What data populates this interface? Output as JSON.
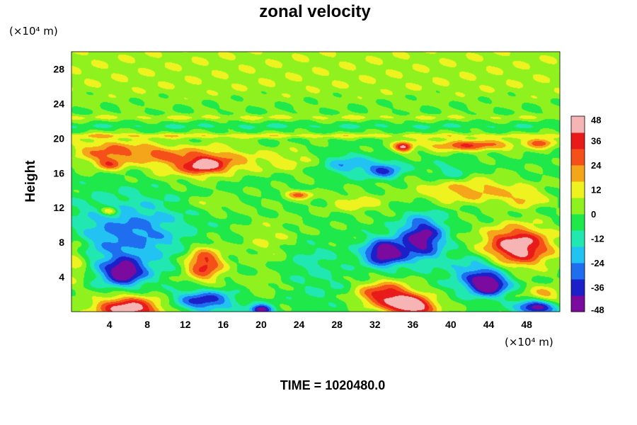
{
  "chart_data": {
    "type": "heatmap",
    "title": "zonal velocity",
    "ylabel": "Height",
    "y_unit": "(×10⁴ m)",
    "x_unit": "(×10⁴ m)",
    "footer": "TIME = 1020480.0",
    "xlim": [
      0,
      51.5
    ],
    "ylim": [
      0,
      30
    ],
    "x_ticks": [
      4,
      8,
      12,
      16,
      20,
      24,
      28,
      32,
      36,
      40,
      44,
      48
    ],
    "y_ticks": [
      4,
      8,
      12,
      16,
      20,
      24,
      28
    ],
    "colorbar": {
      "min": -48,
      "max": 48,
      "ticks": [
        48,
        36,
        24,
        12,
        0,
        -12,
        -24,
        -36,
        -48
      ],
      "colors": [
        "#7b0a9e",
        "#1b20c8",
        "#1f6ef0",
        "#22c3f2",
        "#20e8b0",
        "#1fe84a",
        "#8ff21f",
        "#eef21f",
        "#f5a51a",
        "#f5501a",
        "#e81a1a",
        "#f7b4b4"
      ]
    },
    "background_value": -2,
    "features": [
      {
        "x": 18,
        "y": 22.4,
        "sx": 60,
        "sy": 0.35,
        "v": 10
      },
      {
        "x": 18,
        "y": 21.4,
        "sx": 60,
        "sy": 0.3,
        "v": -6
      },
      {
        "x": 18,
        "y": 20.3,
        "sx": 60,
        "sy": 0.3,
        "v": 14
      },
      {
        "x": 4,
        "y": 18.5,
        "sx": 4,
        "sy": 1.5,
        "v": 28
      },
      {
        "x": 4,
        "y": 17,
        "sx": 1.5,
        "sy": 0.7,
        "v": 22
      },
      {
        "x": 14,
        "y": 17.2,
        "sx": 5,
        "sy": 1.8,
        "v": 34
      },
      {
        "x": 14,
        "y": 16.8,
        "sx": 1.8,
        "sy": 0.9,
        "v": 20
      },
      {
        "x": 9,
        "y": 18.3,
        "sx": 2.5,
        "sy": 1,
        "v": 14
      },
      {
        "x": 23,
        "y": 17.5,
        "sx": 3,
        "sy": 1.5,
        "v": 12
      },
      {
        "x": 35,
        "y": 19,
        "sx": 1,
        "sy": 0.6,
        "v": 40
      },
      {
        "x": 42,
        "y": 19.2,
        "sx": 5,
        "sy": 0.7,
        "v": 32
      },
      {
        "x": 49.5,
        "y": 19.5,
        "sx": 1.5,
        "sy": 0.6,
        "v": 30
      },
      {
        "x": 33,
        "y": 16.3,
        "sx": 2,
        "sy": 1,
        "v": -30
      },
      {
        "x": 29,
        "y": 17,
        "sx": 2.5,
        "sy": 1.2,
        "v": -20
      },
      {
        "x": 40,
        "y": 16,
        "sx": 2,
        "sy": 1.2,
        "v": -12
      },
      {
        "x": 17,
        "y": 15.5,
        "sx": 4,
        "sy": 1,
        "v": -6
      },
      {
        "x": 42,
        "y": 14,
        "sx": 6,
        "sy": 1.5,
        "v": 22
      },
      {
        "x": 48,
        "y": 13,
        "sx": 2,
        "sy": 1,
        "v": 16
      },
      {
        "x": 30,
        "y": 12.5,
        "sx": 3,
        "sy": 1,
        "v": 16
      },
      {
        "x": 24,
        "y": 13.5,
        "sx": 1.5,
        "sy": 0.5,
        "v": 28
      },
      {
        "x": 4,
        "y": 11.6,
        "sx": 1,
        "sy": 0.5,
        "v": 30
      },
      {
        "x": 15,
        "y": 12.5,
        "sx": 3,
        "sy": 1,
        "v": 10
      },
      {
        "x": 6,
        "y": 9,
        "sx": 6,
        "sy": 4,
        "v": -26
      },
      {
        "x": 5.5,
        "y": 4.5,
        "sx": 2.3,
        "sy": 1.6,
        "v": -42
      },
      {
        "x": 0.3,
        "y": 6,
        "sx": 1.5,
        "sy": 3,
        "v": 18
      },
      {
        "x": 14,
        "y": 5.5,
        "sx": 2,
        "sy": 2,
        "v": 40
      },
      {
        "x": 14,
        "y": 1.3,
        "sx": 3,
        "sy": 1.2,
        "v": -36
      },
      {
        "x": 6,
        "y": 0.3,
        "sx": 3.5,
        "sy": 1.5,
        "v": 50
      },
      {
        "x": 20,
        "y": 0.2,
        "sx": 1.2,
        "sy": 0.6,
        "v": -46
      },
      {
        "x": 21,
        "y": 8,
        "sx": 3,
        "sy": 3,
        "v": 10
      },
      {
        "x": 25,
        "y": 6,
        "sx": 3,
        "sy": 2,
        "v": -10
      },
      {
        "x": 33,
        "y": 6.8,
        "sx": 2.2,
        "sy": 1.6,
        "v": -48
      },
      {
        "x": 37,
        "y": 8.5,
        "sx": 2.3,
        "sy": 2.5,
        "v": -44
      },
      {
        "x": 33,
        "y": 2,
        "sx": 3,
        "sy": 1.5,
        "v": 40
      },
      {
        "x": 36,
        "y": 0.6,
        "sx": 2.5,
        "sy": 1.2,
        "v": 50
      },
      {
        "x": 47,
        "y": 7.5,
        "sx": 3.5,
        "sy": 2.3,
        "v": 52
      },
      {
        "x": 44,
        "y": 3,
        "sx": 2,
        "sy": 1.2,
        "v": -42
      },
      {
        "x": 43,
        "y": 4.5,
        "sx": 3,
        "sy": 2,
        "v": -26
      },
      {
        "x": 49,
        "y": 0.5,
        "sx": 2,
        "sy": 0.8,
        "v": -46
      },
      {
        "x": 50,
        "y": 2,
        "sx": 2,
        "sy": 1,
        "v": 20
      },
      {
        "x": 27,
        "y": 2.5,
        "sx": 4,
        "sy": 2,
        "v": -6
      },
      {
        "x": 20,
        "y": 3,
        "sx": 2,
        "sy": 1.2,
        "v": 8
      }
    ]
  }
}
